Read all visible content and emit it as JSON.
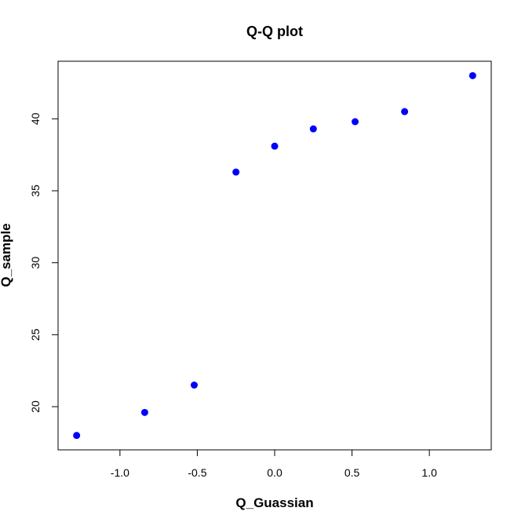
{
  "chart_data": {
    "type": "scatter",
    "title": "Q-Q plot",
    "xlabel": "Q_Guassian",
    "ylabel": "Q_sample",
    "xlim": [
      -1.4,
      1.4
    ],
    "ylim": [
      17.0,
      44.0
    ],
    "x_ticks": [
      -1.0,
      -0.5,
      0.0,
      0.5,
      1.0
    ],
    "x_tick_labels": [
      "-1.0",
      "-0.5",
      "0.0",
      "0.5",
      "1.0"
    ],
    "y_ticks": [
      20,
      25,
      30,
      35,
      40
    ],
    "y_tick_labels": [
      "20",
      "25",
      "30",
      "35",
      "40"
    ],
    "grid": false,
    "legend": "none",
    "marker_color": "#0000ff",
    "series": [
      {
        "x": [
          -1.28,
          -0.84,
          -0.52,
          -0.25,
          0.0,
          0.25,
          0.52,
          0.84,
          1.28
        ],
        "y": [
          18.0,
          19.6,
          21.5,
          36.3,
          38.1,
          39.3,
          39.8,
          40.5,
          43.0
        ]
      }
    ]
  }
}
